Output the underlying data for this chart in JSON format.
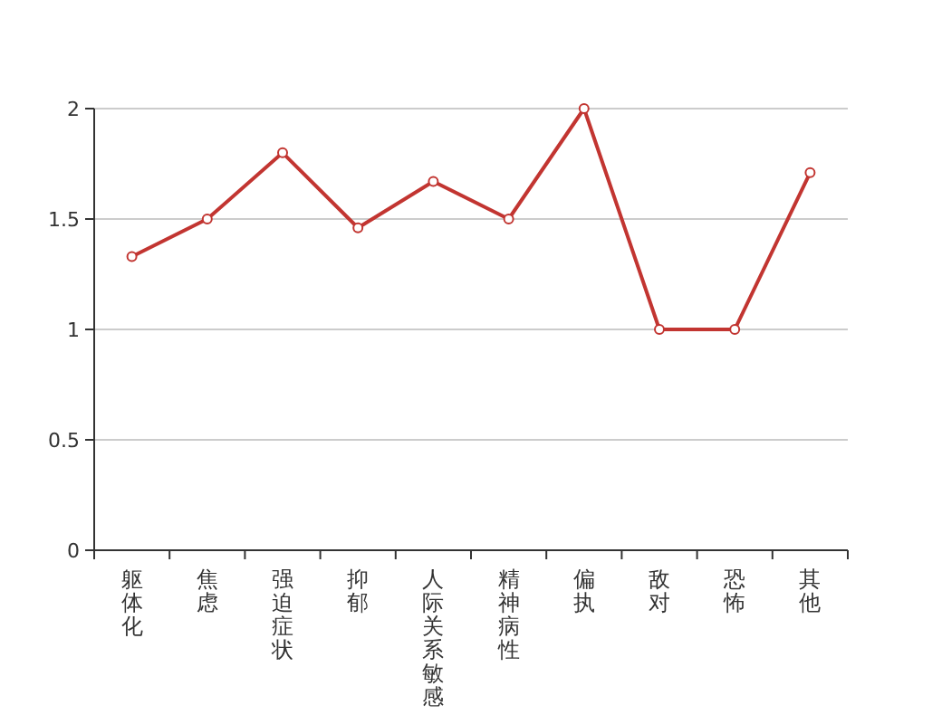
{
  "chart_data": {
    "type": "line",
    "categories": [
      "躯体化",
      "焦虑",
      "强迫症状",
      "抑郁",
      "人际关系敏感",
      "精神病性",
      "偏执",
      "敌对",
      "恐怖",
      "其他"
    ],
    "series": [
      {
        "color": "#c23531",
        "values": [
          1.33,
          1.5,
          1.8,
          1.46,
          1.67,
          1.5,
          2,
          1,
          1,
          1.71
        ]
      }
    ],
    "ylim": [
      0,
      2
    ],
    "yticks": [
      0,
      {
        "value": 0.5,
        "label": "0.5"
      },
      1,
      {
        "value": 1.5,
        "label": "1.5"
      },
      2
    ],
    "grid": "y",
    "marker": "circle",
    "line_style": "solid"
  }
}
